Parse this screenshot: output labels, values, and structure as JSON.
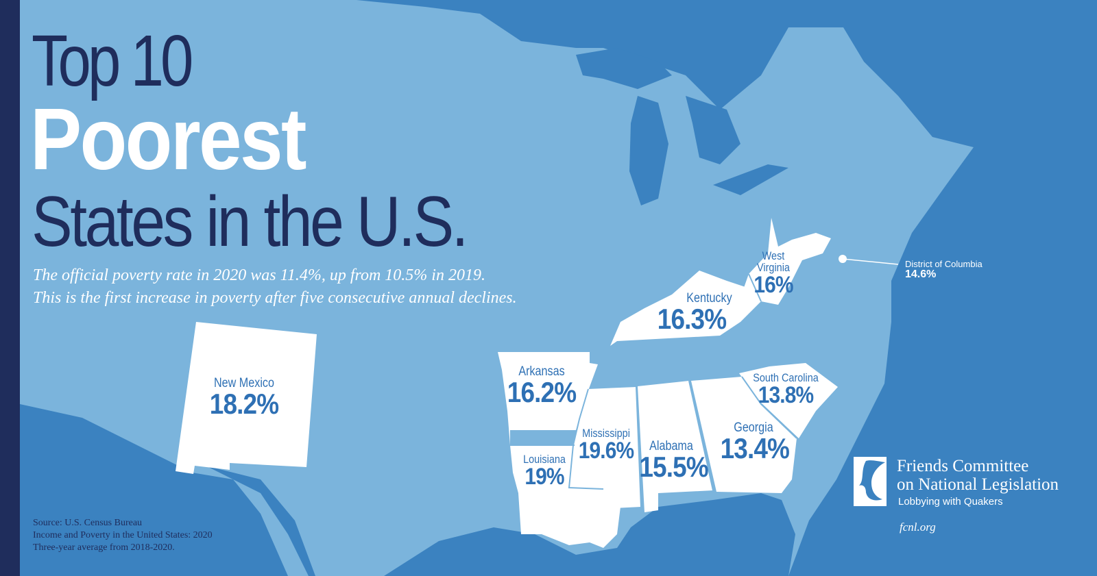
{
  "title": {
    "line1": "Top 10",
    "line2": "Poorest",
    "line3": "States in the U.S."
  },
  "subtitle": {
    "line1": "The official poverty rate in 2020 was 11.4%, up from 10.5% in 2019.",
    "line2": "This is the first increase in poverty after five consecutive annual declines."
  },
  "states": [
    {
      "name": "New Mexico",
      "value": "18.2%"
    },
    {
      "name": "Arkansas",
      "value": "16.2%"
    },
    {
      "name": "Louisiana",
      "value": "19%"
    },
    {
      "name": "Mississippi",
      "value": "19.6%"
    },
    {
      "name": "Alabama",
      "value": "15.5%"
    },
    {
      "name": "Georgia",
      "value": "13.4%"
    },
    {
      "name": "South Carolina",
      "value": "13.8%"
    },
    {
      "name": "Kentucky",
      "value": "16.3%"
    },
    {
      "name": "West Virginia",
      "value": "16%"
    },
    {
      "name": "District of Columbia",
      "value": "14.6%"
    }
  ],
  "source": {
    "line1": "Source: U.S. Census Bureau",
    "line2": "Income and Poverty in the United States: 2020",
    "line3": "Three-year average from 2018-2020."
  },
  "org": {
    "line1": "Friends Committee",
    "line2": "on National Legislation",
    "tagline": "Lobbying with Quakers",
    "url": "fcnl.org"
  },
  "colors": {
    "land": "#7bb4dc",
    "water": "#3b82c0",
    "navy": "#1f2d5c",
    "highlight": "#ffffff",
    "label": "#2e70b4"
  }
}
